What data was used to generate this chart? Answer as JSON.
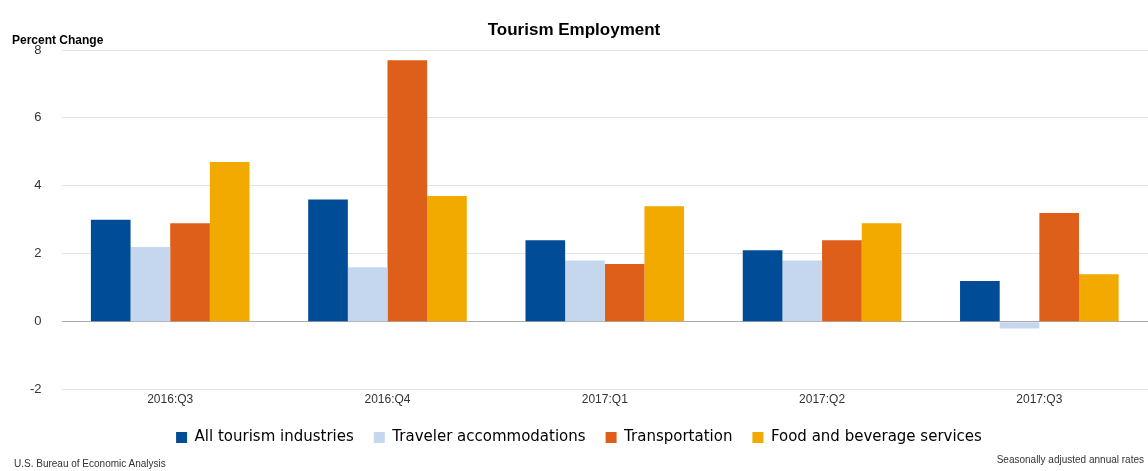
{
  "chart_data": {
    "type": "bar",
    "title": "Tourism Employment",
    "ylabel": "Percent Change",
    "categories": [
      "2016:Q3",
      "2016:Q4",
      "2017:Q1",
      "2017:Q2",
      "2017:Q3"
    ],
    "series": [
      {
        "name": "All tourism industries",
        "color": "#004c97",
        "values": [
          3.0,
          3.6,
          2.4,
          2.1,
          1.2
        ]
      },
      {
        "name": "Traveler accommodations",
        "color": "#c5d7ee",
        "values": [
          2.2,
          1.6,
          1.8,
          1.8,
          -0.2
        ]
      },
      {
        "name": "Transportation",
        "color": "#dd5f1a",
        "values": [
          2.9,
          7.7,
          1.7,
          2.4,
          3.2
        ]
      },
      {
        "name": "Food and beverage services",
        "color": "#f2a900",
        "values": [
          4.7,
          3.7,
          3.4,
          2.9,
          1.4
        ]
      }
    ],
    "ylim": [
      -2,
      8
    ],
    "yticks": [
      -2,
      0,
      2,
      4,
      6,
      8
    ],
    "grid": "y",
    "legend": "bottom",
    "annotations": [
      "U.S. Bureau of Economic Analysis",
      "Seasonally adjusted annual rates"
    ]
  }
}
